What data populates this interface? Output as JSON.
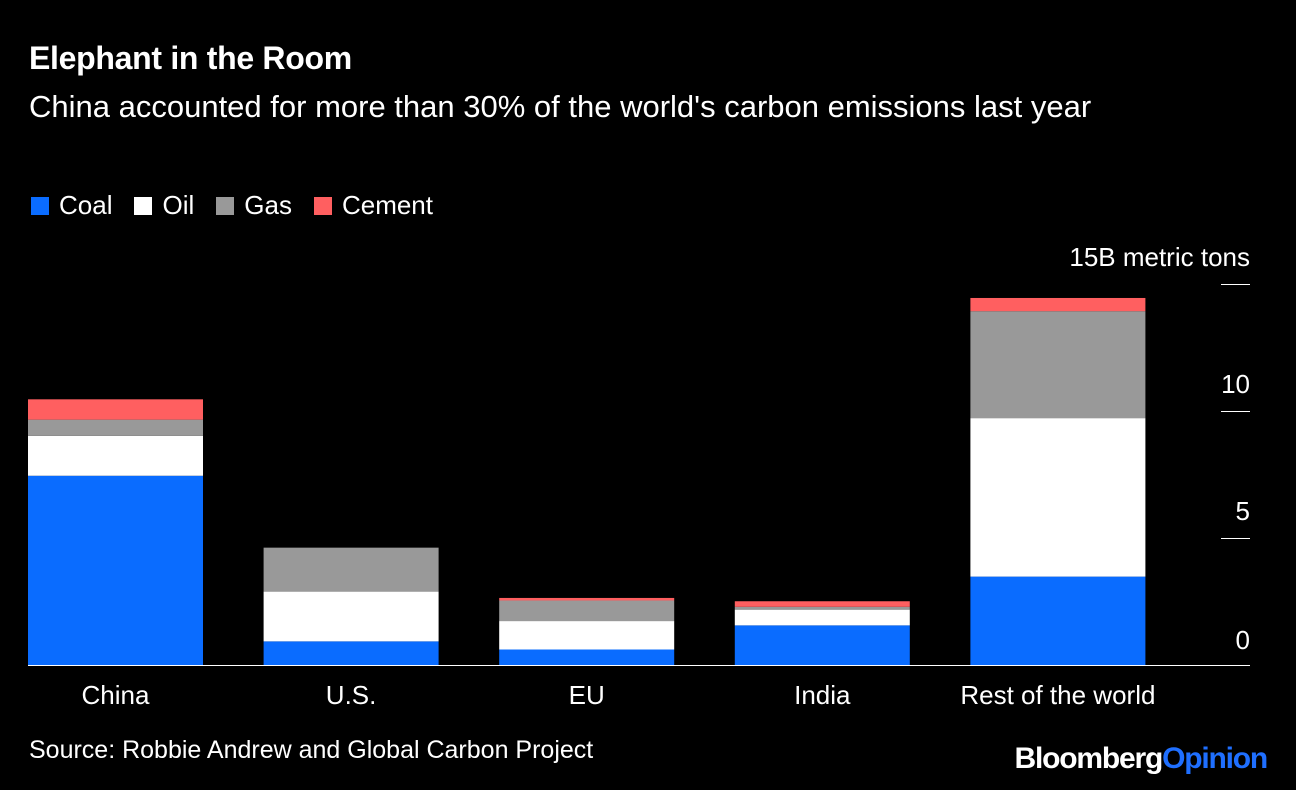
{
  "header": {
    "title": "Elephant in the Room",
    "subtitle": "China accounted for more than 30% of the world's carbon emissions last year"
  },
  "legend": [
    {
      "label": "Coal",
      "color": "#0a6cff"
    },
    {
      "label": "Oil",
      "color": "#ffffff"
    },
    {
      "label": "Gas",
      "color": "#999999"
    },
    {
      "label": "Cement",
      "color": "#ff5f60"
    }
  ],
  "chart_data": {
    "type": "bar",
    "stacked": true,
    "title": "Elephant in the Room",
    "subtitle": "China accounted for more than 30% of the world's carbon emissions last year",
    "categories": [
      "China",
      "U.S.",
      "EU",
      "India",
      "Rest of the world"
    ],
    "series": [
      {
        "name": "Coal",
        "color": "#0a6cff",
        "values": [
          7.45,
          0.93,
          0.61,
          1.56,
          3.48
        ]
      },
      {
        "name": "Oil",
        "color": "#ffffff",
        "values": [
          1.57,
          1.96,
          1.12,
          0.62,
          6.24
        ]
      },
      {
        "name": "Gas",
        "color": "#999999",
        "values": [
          0.64,
          1.73,
          0.81,
          0.11,
          4.21
        ]
      },
      {
        "name": "Cement",
        "color": "#ff5f60",
        "values": [
          0.8,
          0.0,
          0.1,
          0.22,
          0.52
        ]
      }
    ],
    "y_unit_label": "15B metric tons",
    "yticks": [
      0,
      5,
      10,
      15
    ],
    "ytick_labels": [
      "0",
      "5",
      "10",
      "15B metric tons"
    ],
    "ylim": [
      0,
      15
    ],
    "y_axis_position": "right",
    "grid": false,
    "legend_position": "top-left"
  },
  "footer": {
    "source": "Source: Robbie Andrew and Global Carbon Project",
    "brand_part1": "Bloomberg",
    "brand_part2": "Opinion"
  }
}
